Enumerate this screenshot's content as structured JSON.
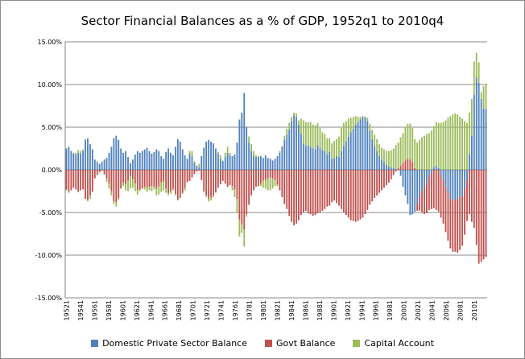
{
  "chart_data": {
    "type": "bar",
    "stacked": true,
    "title": "Sector Financial Balances as a % of GDP, 1952q1 to 2010q4",
    "ylim": [
      -15,
      15
    ],
    "y_ticks": [
      15,
      10,
      5,
      0,
      -5,
      -10,
      -15
    ],
    "y_tick_labels": [
      "15.00%",
      "10.00%",
      "5.00%",
      "0.00%",
      "-5.00%",
      "-10.00%",
      "-15.00%"
    ],
    "x_tick_labels": [
      "19521",
      "19541",
      "19561",
      "19581",
      "19601",
      "19621",
      "19641",
      "19661",
      "19681",
      "19701",
      "19721",
      "19741",
      "19761",
      "19781",
      "19801",
      "19821",
      "19841",
      "19861",
      "19881",
      "19901",
      "19921",
      "19941",
      "19961",
      "19981",
      "20001",
      "20021",
      "20041",
      "20061",
      "20081",
      "20101"
    ],
    "grid": true,
    "legend_position": "bottom",
    "series": [
      {
        "name": "Domestic Private Sector Balance",
        "color": "#4f81bd",
        "values": [
          2.5,
          2.7,
          2.2,
          1.9,
          1.8,
          2.0,
          1.9,
          2.2,
          3.5,
          3.7,
          3.0,
          2.4,
          1.2,
          0.9,
          0.7,
          0.9,
          1.2,
          1.4,
          2.0,
          2.7,
          3.7,
          4.0,
          3.5,
          2.5,
          2.0,
          2.2,
          1.5,
          0.8,
          1.2,
          1.8,
          2.2,
          2.0,
          2.2,
          2.4,
          2.6,
          2.2,
          1.9,
          2.1,
          2.4,
          2.2,
          1.6,
          1.3,
          2.1,
          2.5,
          2.0,
          1.7,
          2.7,
          3.6,
          3.3,
          2.4,
          1.7,
          1.3,
          1.9,
          1.6,
          0.8,
          0.5,
          0.3,
          1.6,
          2.6,
          3.3,
          3.5,
          3.3,
          3.1,
          2.5,
          1.9,
          1.3,
          1.0,
          1.5,
          2.0,
          1.7,
          1.6,
          1.8,
          3.2,
          5.9,
          6.7,
          9.0,
          5.0,
          3.2,
          2.2,
          1.6,
          1.5,
          1.5,
          1.6,
          1.4,
          1.7,
          1.4,
          1.3,
          1.1,
          1.3,
          1.6,
          2.0,
          2.7,
          3.5,
          4.1,
          4.7,
          5.7,
          6.4,
          6.2,
          5.3,
          4.2,
          3.1,
          2.8,
          2.9,
          2.7,
          2.5,
          2.4,
          2.9,
          2.6,
          2.3,
          2.2,
          1.8,
          2.1,
          1.3,
          1.4,
          1.6,
          1.5,
          2.2,
          2.8,
          3.3,
          3.9,
          4.4,
          4.8,
          5.3,
          5.6,
          5.9,
          6.2,
          6.2,
          5.7,
          4.6,
          3.6,
          2.8,
          2.2,
          1.6,
          1.2,
          0.9,
          0.6,
          0.4,
          0.3,
          0.2,
          0.1,
          0.0,
          -0.7,
          -2.0,
          -3.0,
          -4.0,
          -5.3,
          -5.2,
          -4.9,
          -4.0,
          -3.2,
          -2.5,
          -2.0,
          -1.5,
          -0.8,
          -0.4,
          0.3,
          0.5,
          0.2,
          -0.6,
          -1.2,
          -2.0,
          -2.7,
          -3.4,
          -3.6,
          -3.5,
          -3.4,
          -3.2,
          -3.0,
          -2.2,
          -1.2,
          1.8,
          4.0,
          8.8,
          10.8,
          10.2,
          8.3,
          7.2,
          7.1
        ]
      },
      {
        "name": "Govt Balance",
        "color": "#c0504d",
        "values": [
          -2.3,
          -2.5,
          -2.4,
          -2.1,
          -2.3,
          -2.6,
          -2.4,
          -2.3,
          -3.4,
          -3.5,
          -3.0,
          -2.5,
          -1.0,
          -0.6,
          -0.3,
          -0.1,
          -0.5,
          -1.0,
          -1.6,
          -2.5,
          -3.7,
          -3.8,
          -3.3,
          -2.2,
          -1.5,
          -1.7,
          -1.3,
          -0.7,
          -1.1,
          -1.6,
          -2.4,
          -2.3,
          -2.2,
          -2.0,
          -2.1,
          -2.0,
          -1.9,
          -2.0,
          -2.2,
          -2.0,
          -1.5,
          -1.4,
          -2.2,
          -2.7,
          -2.5,
          -2.2,
          -2.8,
          -3.5,
          -3.3,
          -2.7,
          -2.1,
          -1.4,
          -1.3,
          -0.9,
          -0.5,
          -0.2,
          -0.1,
          -1.2,
          -2.5,
          -3.0,
          -3.4,
          -3.2,
          -3.0,
          -2.6,
          -2.1,
          -1.7,
          -1.3,
          -1.6,
          -2.0,
          -1.8,
          -1.9,
          -2.3,
          -3.4,
          -5.8,
          -6.4,
          -7.0,
          -5.2,
          -4.1,
          -3.0,
          -2.4,
          -2.0,
          -1.9,
          -1.6,
          -1.3,
          -1.2,
          -1.0,
          -0.9,
          -1.0,
          -1.2,
          -1.7,
          -2.4,
          -3.2,
          -4.0,
          -4.6,
          -5.4,
          -6.1,
          -6.5,
          -6.3,
          -5.9,
          -5.3,
          -5.0,
          -4.8,
          -5.1,
          -5.2,
          -5.4,
          -5.3,
          -5.1,
          -5.0,
          -4.8,
          -4.6,
          -4.3,
          -4.2,
          -3.8,
          -3.6,
          -3.9,
          -4.2,
          -4.6,
          -5.0,
          -5.3,
          -5.6,
          -5.9,
          -6.0,
          -6.1,
          -6.0,
          -5.8,
          -5.6,
          -5.2,
          -4.7,
          -4.1,
          -3.7,
          -3.3,
          -3.0,
          -2.7,
          -2.4,
          -2.1,
          -1.8,
          -1.5,
          -1.1,
          -0.6,
          -0.2,
          0.2,
          0.5,
          0.8,
          1.1,
          1.3,
          1.2,
          0.9,
          0.2,
          -0.8,
          -1.6,
          -2.5,
          -3.2,
          -3.6,
          -3.9,
          -4.2,
          -4.5,
          -4.7,
          -4.9,
          -5.0,
          -5.1,
          -5.3,
          -5.6,
          -5.8,
          -6.0,
          -6.1,
          -6.3,
          -6.2,
          -5.9,
          -5.4,
          -4.8,
          -5.2,
          -6.1,
          -6.8,
          -8.8,
          -11.0,
          -10.8,
          -10.5,
          -10.2,
          -10.3
        ]
      },
      {
        "name": "Capital Account",
        "color": "#9bbb59",
        "values": [
          -0.1,
          -0.2,
          0.0,
          0.1,
          0.2,
          0.3,
          0.3,
          0.2,
          0.1,
          -0.2,
          -0.4,
          -0.1,
          0.0,
          0.1,
          0.0,
          0.1,
          -0.1,
          -0.4,
          -0.6,
          -0.5,
          -0.3,
          -0.5,
          -0.2,
          0.0,
          -0.4,
          -0.7,
          -1.2,
          -1.5,
          -1.0,
          -0.9,
          -0.5,
          -0.2,
          0.0,
          -0.3,
          -0.5,
          -0.4,
          -0.6,
          -0.3,
          -0.8,
          -0.9,
          -1.1,
          -1.0,
          -0.5,
          -0.3,
          -0.3,
          -0.2,
          -0.2,
          -0.1,
          0.0,
          -0.1,
          -0.3,
          -0.1,
          0.3,
          0.6,
          0.2,
          0.0,
          0.4,
          0.0,
          -0.1,
          -0.2,
          -0.3,
          -0.4,
          -0.2,
          -0.1,
          0.2,
          0.4,
          0.1,
          0.5,
          0.7,
          0.3,
          -0.5,
          -0.9,
          -1.7,
          -2.0,
          -1.0,
          -2.0,
          -0.3,
          0.7,
          0.8,
          0.6,
          0.2,
          0.1,
          -0.3,
          -0.8,
          -1.0,
          -1.4,
          -1.5,
          -1.2,
          -0.7,
          -0.2,
          0.2,
          0.1,
          0.5,
          0.7,
          0.8,
          0.5,
          0.3,
          0.4,
          0.5,
          1.8,
          2.7,
          2.8,
          2.7,
          2.9,
          2.8,
          2.8,
          2.6,
          2.3,
          2.1,
          2.0,
          1.9,
          1.6,
          1.8,
          2.0,
          2.0,
          2.4,
          2.7,
          2.7,
          2.4,
          2.1,
          1.7,
          1.4,
          1.0,
          0.6,
          0.3,
          0.1,
          0.0,
          0.4,
          0.8,
          1.1,
          1.3,
          1.4,
          1.4,
          1.4,
          1.5,
          1.6,
          1.8,
          2.0,
          2.3,
          2.8,
          3.0,
          3.3,
          3.5,
          3.9,
          4.1,
          4.2,
          4.0,
          3.4,
          3.2,
          3.5,
          3.8,
          4.0,
          4.2,
          4.3,
          4.6,
          4.8,
          5.1,
          5.3,
          5.5,
          5.6,
          5.8,
          6.1,
          6.3,
          6.5,
          6.6,
          6.5,
          6.2,
          6.0,
          5.7,
          5.5,
          4.9,
          4.3,
          3.9,
          2.9,
          2.4,
          0.8,
          2.6,
          3.0
        ]
      }
    ]
  }
}
